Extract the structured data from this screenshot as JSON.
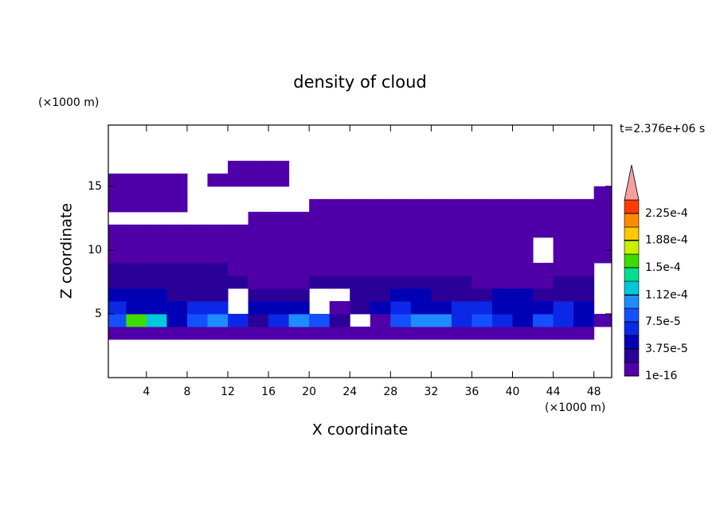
{
  "chart_data": {
    "type": "contour",
    "title": "density of cloud",
    "xlabel": "X coordinate",
    "ylabel": "Z coordinate",
    "xunit": "(×1000 m)",
    "yunit": "(×1000 m)",
    "annotation": "t=2.376e+06 s",
    "xlim": [
      0.25,
      49.75
    ],
    "ylim": [
      0,
      19.8
    ],
    "xticks": [
      4,
      8,
      12,
      16,
      20,
      24,
      28,
      32,
      36,
      40,
      44,
      48
    ],
    "yticks": [
      5,
      10,
      15
    ],
    "x": [
      1,
      3,
      5,
      7,
      9,
      11,
      13,
      15,
      17,
      19,
      21,
      23,
      25,
      27,
      29,
      31,
      33,
      35,
      37,
      39,
      41,
      43,
      45,
      47,
      49
    ],
    "y": [
      3.5,
      4.5,
      5.5,
      6.5,
      7.5,
      8.5,
      9.5,
      10.5,
      11.5,
      12.5,
      13.5,
      14.5,
      15.5,
      16.5
    ],
    "z": [
      [
        1e-16,
        1e-16,
        1e-16,
        1e-16,
        1e-16,
        1e-16,
        1e-16,
        1e-16,
        1e-16,
        1e-16,
        1e-16,
        1e-16,
        1e-16,
        1e-16,
        1e-16,
        1e-16,
        1e-16,
        1e-16,
        1e-16,
        1e-16,
        1e-16,
        1e-16,
        1e-16,
        1e-16,
        null
      ],
      [
        8e-05,
        0.00016,
        0.00013,
        4e-05,
        8e-05,
        0.0001,
        6e-05,
        2e-05,
        6e-05,
        0.0001,
        8e-05,
        2e-05,
        null,
        1e-16,
        8e-05,
        0.0001,
        0.0001,
        6e-05,
        8e-05,
        6e-05,
        4e-05,
        8e-05,
        6e-05,
        4e-05,
        1e-16
      ],
      [
        6e-05,
        4e-05,
        4e-05,
        4e-05,
        6e-05,
        6e-05,
        null,
        4e-05,
        4e-05,
        4e-05,
        null,
        1e-16,
        2e-05,
        4e-05,
        6e-05,
        4e-05,
        4e-05,
        6e-05,
        6e-05,
        4e-05,
        4e-05,
        4e-05,
        6e-05,
        4e-05,
        null
      ],
      [
        4e-05,
        4e-05,
        4e-05,
        2e-05,
        2e-05,
        2e-05,
        null,
        2e-05,
        2e-05,
        2e-05,
        null,
        null,
        2e-05,
        2e-05,
        4e-05,
        4e-05,
        2e-05,
        2e-05,
        2e-05,
        4e-05,
        4e-05,
        2e-05,
        2e-05,
        2e-05,
        null
      ],
      [
        2e-05,
        2e-05,
        2e-05,
        2e-05,
        2e-05,
        2e-05,
        2e-05,
        1e-16,
        1e-16,
        1e-16,
        2e-05,
        2e-05,
        2e-05,
        2e-05,
        2e-05,
        2e-05,
        2e-05,
        2e-05,
        1e-16,
        1e-16,
        1e-16,
        1e-16,
        2e-05,
        2e-05,
        null
      ],
      [
        2e-05,
        2e-05,
        2e-05,
        2e-05,
        2e-05,
        2e-05,
        1e-16,
        1e-16,
        1e-16,
        1e-16,
        1e-16,
        1e-16,
        1e-16,
        1e-16,
        1e-16,
        1e-16,
        1e-16,
        1e-16,
        1e-16,
        1e-16,
        1e-16,
        1e-16,
        1e-16,
        1e-16,
        null
      ],
      [
        1e-16,
        1e-16,
        1e-16,
        1e-16,
        1e-16,
        1e-16,
        1e-16,
        1e-16,
        1e-16,
        1e-16,
        1e-16,
        1e-16,
        1e-16,
        1e-16,
        1e-16,
        1e-16,
        1e-16,
        1e-16,
        1e-16,
        1e-16,
        1e-16,
        null,
        1e-16,
        1e-16,
        1e-16
      ],
      [
        1e-16,
        1e-16,
        1e-16,
        1e-16,
        1e-16,
        1e-16,
        1e-16,
        1e-16,
        1e-16,
        1e-16,
        1e-16,
        1e-16,
        1e-16,
        1e-16,
        1e-16,
        1e-16,
        1e-16,
        1e-16,
        1e-16,
        1e-16,
        1e-16,
        null,
        1e-16,
        1e-16,
        1e-16
      ],
      [
        1e-16,
        1e-16,
        1e-16,
        1e-16,
        1e-16,
        1e-16,
        1e-16,
        1e-16,
        1e-16,
        1e-16,
        1e-16,
        1e-16,
        1e-16,
        1e-16,
        1e-16,
        1e-16,
        1e-16,
        1e-16,
        1e-16,
        1e-16,
        1e-16,
        1e-16,
        1e-16,
        1e-16,
        1e-16
      ],
      [
        null,
        null,
        null,
        null,
        null,
        null,
        null,
        1e-16,
        1e-16,
        1e-16,
        1e-16,
        1e-16,
        1e-16,
        1e-16,
        1e-16,
        1e-16,
        1e-16,
        1e-16,
        1e-16,
        1e-16,
        1e-16,
        1e-16,
        1e-16,
        1e-16,
        1e-16
      ],
      [
        1e-16,
        1e-16,
        1e-16,
        1e-16,
        null,
        null,
        null,
        null,
        null,
        null,
        1e-16,
        1e-16,
        1e-16,
        1e-16,
        1e-16,
        1e-16,
        1e-16,
        1e-16,
        1e-16,
        1e-16,
        1e-16,
        1e-16,
        1e-16,
        1e-16,
        1e-16
      ],
      [
        1e-16,
        1e-16,
        1e-16,
        1e-16,
        null,
        null,
        null,
        null,
        null,
        null,
        null,
        null,
        null,
        null,
        null,
        null,
        null,
        null,
        null,
        null,
        null,
        null,
        null,
        null,
        1e-16
      ],
      [
        1e-16,
        1e-16,
        1e-16,
        1e-16,
        null,
        1e-16,
        1e-16,
        1e-16,
        1e-16,
        null,
        null,
        null,
        null,
        null,
        null,
        null,
        null,
        null,
        null,
        null,
        null,
        null,
        null,
        null,
        null
      ],
      [
        null,
        null,
        null,
        null,
        null,
        null,
        1e-16,
        1e-16,
        1e-16,
        null,
        null,
        null,
        null,
        null,
        null,
        null,
        null,
        null,
        null,
        null,
        null,
        null,
        null,
        null,
        null
      ]
    ],
    "colorbar": {
      "levels": [
        1e-16,
        1.875e-05,
        3.75e-05,
        5.625e-05,
        7.5e-05,
        9.375e-05,
        0.0001125,
        0.00013125,
        0.00015,
        0.00016875,
        0.0001875,
        0.00020625,
        0.000225,
        0.00024375
      ],
      "colors": [
        "#5000a8",
        "#2a0098",
        "#0000b4",
        "#0a28e6",
        "#1450ff",
        "#1e8cff",
        "#00c8dc",
        "#00e08c",
        "#3cdc00",
        "#c8f000",
        "#ffc800",
        "#ff8c00",
        "#ff3c00"
      ],
      "extend_color": "#f4a0a0",
      "ticks": [
        1e-16,
        {
          "value": 3.75e-05,
          "label": "3.75e-5"
        },
        {
          "value": 7.5e-05,
          "label": "7.5e-5"
        },
        {
          "value": 0.000112,
          "label": "1.12e-4"
        },
        {
          "value": 0.00015,
          "label": "1.5e-4"
        },
        {
          "value": 0.000188,
          "label": "1.88e-4"
        },
        {
          "value": 0.000225,
          "label": "2.25e-4"
        }
      ]
    }
  }
}
